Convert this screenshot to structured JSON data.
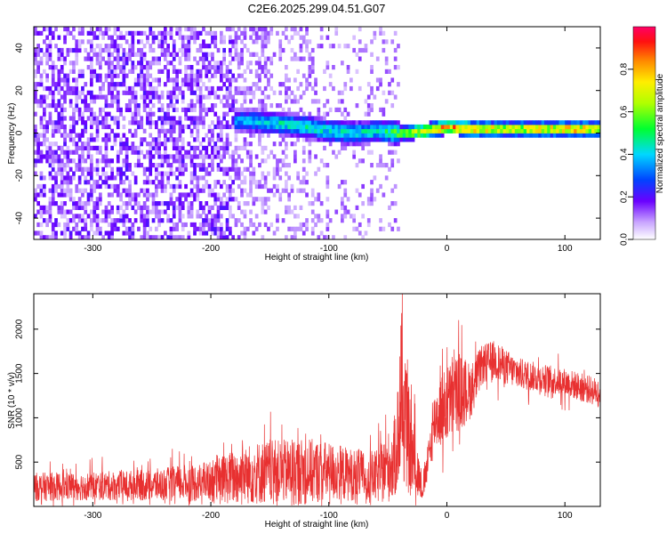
{
  "title": "C2E6.2025.299.04.51.G07",
  "colors": {
    "snr_line": "#e83030",
    "spectrogram_low": "#6a00ff",
    "spectrogram_high": "#ff0040"
  },
  "chart_data": [
    {
      "type": "heatmap",
      "xlabel": "Height of straight line (km)",
      "ylabel": "Frequency (Hz)",
      "xlim": [
        -350,
        130
      ],
      "ylim": [
        -50,
        50
      ],
      "x_ticks": [
        -300,
        -200,
        -100,
        0,
        100
      ],
      "y_ticks": [
        -40,
        -20,
        0,
        20,
        40
      ],
      "x_tick_labels": [
        "-300",
        "-200",
        "-100",
        "0",
        "100"
      ],
      "y_tick_labels": [
        "-40",
        "-20",
        "0",
        "20",
        "40"
      ],
      "colorbar": {
        "label": "Normalized spectral amplitude",
        "range": [
          0,
          1
        ],
        "ticks": [
          0.0,
          0.2,
          0.4,
          0.6,
          0.8
        ],
        "tick_labels": [
          "0.0",
          "0.2",
          "0.4",
          "0.6",
          "0.8"
        ]
      },
      "ridge": {
        "description_points_x": [
          -180,
          -150,
          -120,
          -100,
          -80,
          -60,
          -40,
          -20,
          0,
          20,
          50,
          80,
          110,
          130
        ],
        "center_freq": [
          5,
          4,
          2,
          0,
          -1,
          0,
          -1,
          0,
          2,
          1,
          1,
          1,
          1,
          1
        ],
        "peak_amplitude": [
          0.35,
          0.45,
          0.45,
          0.45,
          0.45,
          0.45,
          0.6,
          0.8,
          0.9,
          0.85,
          0.75,
          0.8,
          0.85,
          0.7
        ]
      }
    },
    {
      "type": "line",
      "xlabel": "Height of straight line (km)",
      "ylabel": "SNR (10 * v/v)",
      "xlim": [
        -350,
        130
      ],
      "ylim": [
        0,
        2400
      ],
      "x_ticks": [
        -300,
        -200,
        -100,
        0,
        100
      ],
      "y_ticks": [
        500,
        1000,
        1500,
        2000
      ],
      "x_tick_labels": [
        "-300",
        "-200",
        "-100",
        "0",
        "100"
      ],
      "y_tick_labels": [
        "500",
        "1000",
        "1500",
        "2000"
      ],
      "series": [
        {
          "x": [
            -350,
            -300,
            -250,
            -200,
            -180,
            -160,
            -140,
            -120,
            -100,
            -80,
            -60,
            -45,
            -38,
            -30,
            -20,
            -10,
            0,
            10,
            20,
            30,
            40,
            60,
            80,
            100,
            130
          ],
          "mean": [
            220,
            230,
            240,
            280,
            330,
            380,
            390,
            400,
            390,
            360,
            330,
            500,
            1100,
            600,
            180,
            1000,
            1150,
            1300,
            1300,
            1600,
            1650,
            1500,
            1450,
            1400,
            1280
          ],
          "spread": [
            180,
            180,
            200,
            260,
            350,
            400,
            400,
            420,
            380,
            330,
            330,
            500,
            900,
            600,
            120,
            400,
            500,
            500,
            350,
            250,
            250,
            200,
            180,
            180,
            180
          ]
        }
      ]
    }
  ]
}
